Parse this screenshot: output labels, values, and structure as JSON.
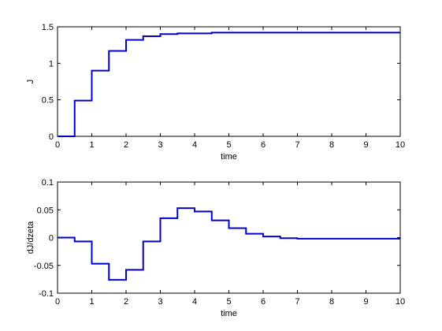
{
  "chart_data": [
    {
      "type": "line",
      "step": true,
      "xlabel": "time",
      "ylabel": "J",
      "xlim": [
        0,
        10
      ],
      "ylim": [
        0,
        1.5
      ],
      "xticks": [
        "0",
        "1",
        "2",
        "3",
        "4",
        "5",
        "6",
        "7",
        "8",
        "9",
        "10"
      ],
      "yticks": [
        "0",
        "0.5",
        "1",
        "1.5"
      ],
      "grid": false,
      "series": [
        {
          "color": "#0000cc",
          "x": [
            0,
            0.5,
            1,
            1.5,
            2,
            2.5,
            3,
            3.5,
            4,
            4.5,
            5,
            5.5,
            6,
            6.5,
            7,
            7.5,
            8,
            8.5,
            9,
            9.5,
            10
          ],
          "values": [
            0,
            0.49,
            0.9,
            1.17,
            1.32,
            1.37,
            1.4,
            1.41,
            1.41,
            1.42,
            1.42,
            1.42,
            1.42,
            1.42,
            1.42,
            1.42,
            1.42,
            1.42,
            1.42,
            1.42,
            1.42
          ]
        }
      ]
    },
    {
      "type": "line",
      "step": true,
      "xlabel": "time",
      "ylabel": "dJ/dzeta",
      "xlim": [
        0,
        10
      ],
      "ylim": [
        -0.1,
        0.1
      ],
      "xticks": [
        "0",
        "1",
        "2",
        "3",
        "4",
        "5",
        "6",
        "7",
        "8",
        "9",
        "10"
      ],
      "yticks": [
        "-0.1",
        "-0.05",
        "0",
        "0.05",
        "0.1"
      ],
      "grid": false,
      "series": [
        {
          "color": "#0000cc",
          "x": [
            0,
            0.5,
            1,
            1.5,
            2,
            2.5,
            3,
            3.5,
            4,
            4.5,
            5,
            5.5,
            6,
            6.5,
            7,
            7.5,
            8,
            8.5,
            9,
            9.5,
            10
          ],
          "values": [
            0,
            -0.007,
            -0.047,
            -0.076,
            -0.058,
            -0.007,
            0.035,
            0.053,
            0.047,
            0.031,
            0.017,
            0.007,
            0.002,
            -0.001,
            -0.002,
            -0.002,
            -0.002,
            -0.002,
            -0.002,
            -0.002,
            -0.002
          ]
        }
      ]
    }
  ]
}
